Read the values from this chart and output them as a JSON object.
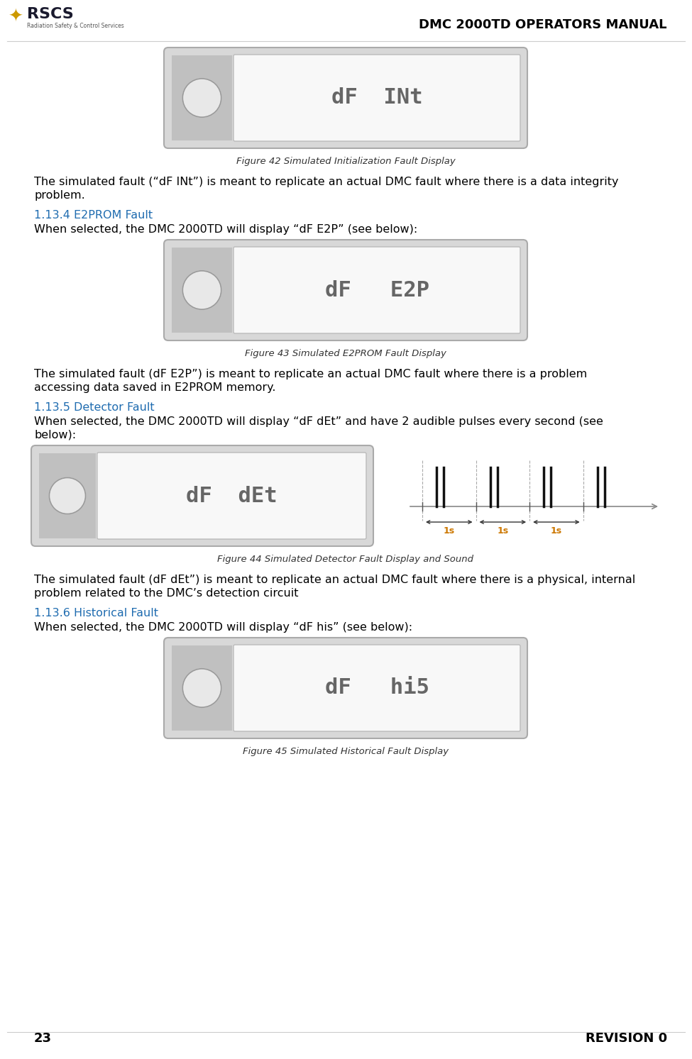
{
  "title": "DMC 2000TD OPERATORS MANUAL",
  "page_num": "23",
  "revision": "REVISION 0",
  "bg_color": "#ffffff",
  "title_fontsize": 13,
  "body_fontsize": 11.5,
  "figure_caption_fontsize": 9.5,
  "section_color": "#1F6CB0",
  "top_figure_label": "dF  INt",
  "top_caption": "Figure 42 Simulated Initialization Fault Display",
  "top_before_text1": "The simulated fault (“dF INt”) is meant to replicate an actual DMC fault where there is a data integrity",
  "top_before_text2": "problem.",
  "sections": [
    {
      "heading": "1.13.4 E2PROM Fault",
      "body": "When selected, the DMC 2000TD will display “dF E2P” (see below):",
      "figure_label": "dF   E2P",
      "caption": "Figure 43 Simulated E2PROM Fault Display",
      "after_text1": "The simulated fault (dF E2P”) is meant to replicate an actual DMC fault where there is a problem",
      "after_text2": "accessing data saved in E2PROM memory.",
      "has_pulse": false
    },
    {
      "heading": "1.13.5 Detector Fault",
      "body1": "When selected, the DMC 2000TD will display “dF dEt” and have 2 audible pulses every second (see",
      "body2": "below):",
      "figure_label": "dF  dEt",
      "caption": "Figure 44 Simulated Detector Fault Display and Sound",
      "after_text1": "The simulated fault (dF dEt”) is meant to replicate an actual DMC fault where there is a physical, internal",
      "after_text2": "problem related to the DMC’s detection circuit",
      "has_pulse": true
    },
    {
      "heading": "1.13.6 Historical Fault",
      "body": "When selected, the DMC 2000TD will display “dF his” (see below):",
      "figure_label": "dF   hi5",
      "caption": "Figure 45 Simulated Historical Fault Display",
      "after_text1": "",
      "after_text2": "",
      "has_pulse": false
    }
  ],
  "display_outer_color": "#d8d8d8",
  "display_outer_border": "#aaaaaa",
  "display_left_color": "#c0c0c0",
  "display_screen_color": "#f8f8f8",
  "display_screen_border": "#bbbbbb",
  "display_text_color": "#666666",
  "pulse_line_color": "#111111",
  "pulse_arrow_color": "#888888",
  "pulse_label_color": "#cc7700",
  "pulse_dash_color": "#aaaaaa"
}
